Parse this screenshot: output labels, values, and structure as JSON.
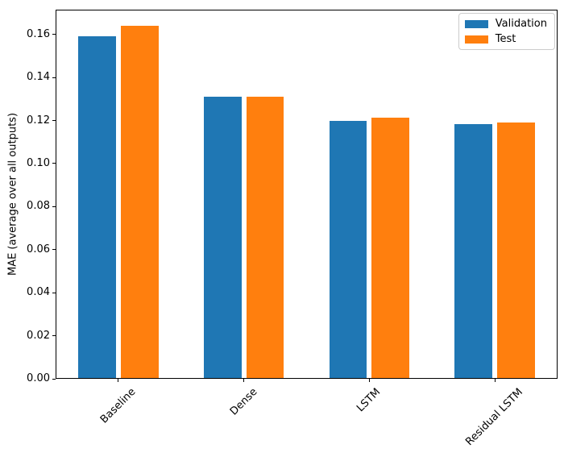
{
  "figure": {
    "background": "#ffffff"
  },
  "chart_data": {
    "type": "bar",
    "title": "",
    "xlabel": "",
    "ylabel": "MAE (average over all outputs)",
    "categories": [
      "Baseline",
      "Dense",
      "LSTM",
      "Residual LSTM"
    ],
    "series": [
      {
        "name": "Validation",
        "color": "#1f77b4",
        "values": [
          0.159,
          0.131,
          0.12,
          0.1185
        ]
      },
      {
        "name": "Test",
        "color": "#ff7f0e",
        "values": [
          0.164,
          0.131,
          0.1215,
          0.119
        ]
      }
    ],
    "ylim": [
      0,
      0.1715
    ],
    "ytick_values": [
      0.0,
      0.02,
      0.04,
      0.06,
      0.08,
      0.1,
      0.12,
      0.14,
      0.16
    ],
    "ytick_labels": [
      "0.00",
      "0.02",
      "0.04",
      "0.06",
      "0.08",
      "0.10",
      "0.12",
      "0.14",
      "0.16"
    ],
    "xtick_rotation_deg": 45,
    "grid": false,
    "bar_width_fraction": 0.3,
    "bar_offset_fraction": 0.17,
    "legend": {
      "position": "upper-right",
      "border_color": "#cccccc",
      "background": "#ffffff"
    },
    "axis_color": "#000000",
    "text_color": "#000000"
  }
}
